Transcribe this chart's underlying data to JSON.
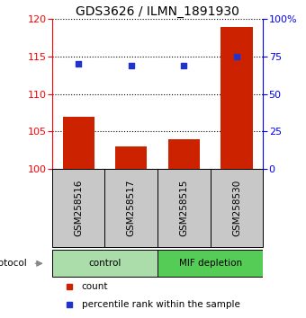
{
  "title": "GDS3626 / ILMN_1891930",
  "samples": [
    "GSM258516",
    "GSM258517",
    "GSM258515",
    "GSM258530"
  ],
  "bar_values": [
    107,
    103,
    104,
    119
  ],
  "percentile_values": [
    70,
    69,
    69,
    75
  ],
  "bar_color": "#cc2200",
  "dot_color": "#2233cc",
  "ylim_left": [
    100,
    120
  ],
  "ylim_right": [
    0,
    100
  ],
  "yticks_left": [
    100,
    105,
    110,
    115,
    120
  ],
  "yticks_right": [
    0,
    25,
    50,
    75,
    100
  ],
  "yticklabels_right": [
    "0",
    "25",
    "50",
    "75",
    "100%"
  ],
  "groups": [
    {
      "label": "control",
      "indices": [
        0,
        1
      ],
      "color": "#aaddaa"
    },
    {
      "label": "MIF depletion",
      "indices": [
        2,
        3
      ],
      "color": "#55cc55"
    }
  ],
  "protocol_label": "protocol",
  "legend_count_label": "count",
  "legend_pct_label": "percentile rank within the sample",
  "bar_width": 0.6,
  "title_fontsize": 10,
  "tick_fontsize": 8,
  "label_fontsize": 7.5,
  "legend_fontsize": 7.5
}
